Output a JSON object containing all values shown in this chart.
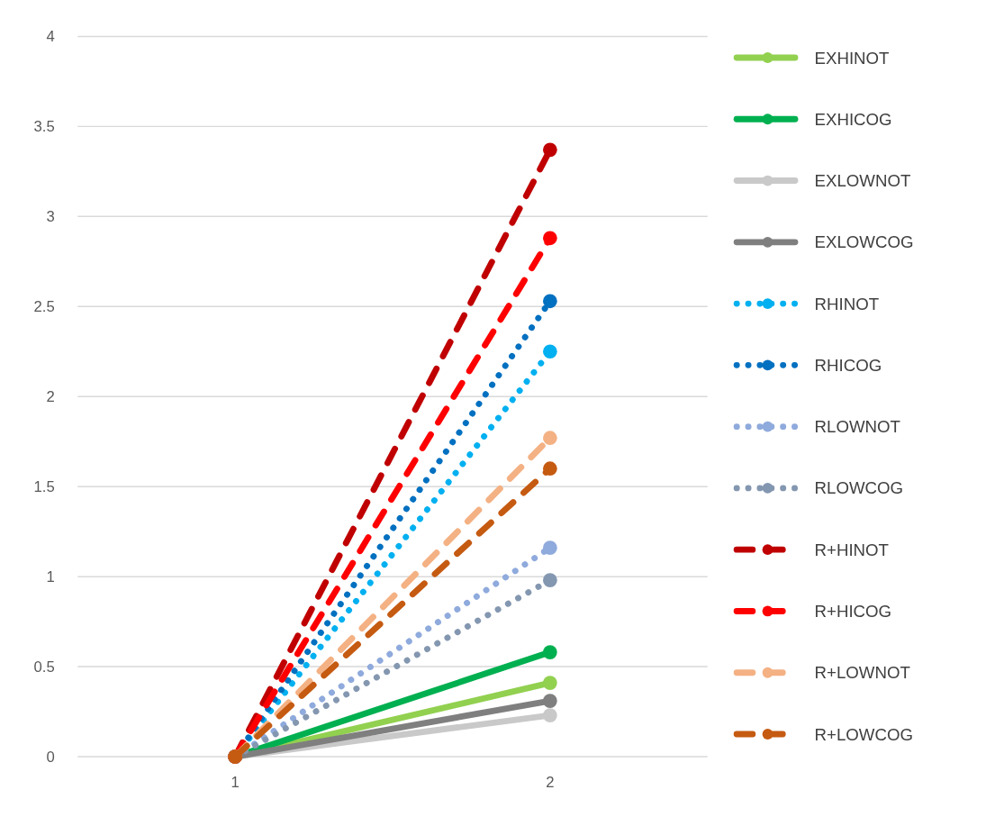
{
  "chart_data": {
    "type": "line",
    "categories": [
      "1",
      "2"
    ],
    "ylim": [
      0,
      4
    ],
    "yticks": [
      0,
      0.5,
      1,
      1.5,
      2,
      2.5,
      3,
      3.5,
      4
    ],
    "grid": "y",
    "legend": "right",
    "marker": "circle",
    "series": [
      {
        "name": "EXHINOT",
        "color": "#92d050",
        "line_style": "solid",
        "values": [
          0,
          0.41
        ]
      },
      {
        "name": "EXHICOG",
        "color": "#00b050",
        "line_style": "solid",
        "values": [
          0,
          0.58
        ]
      },
      {
        "name": "EXLOWNOT",
        "color": "#c9c9c9",
        "line_style": "solid",
        "values": [
          0,
          0.23
        ]
      },
      {
        "name": "EXLOWCOG",
        "color": "#7f7f7f",
        "line_style": "solid",
        "values": [
          0,
          0.31
        ]
      },
      {
        "name": "RHINOT",
        "color": "#00b0f0",
        "line_style": "dotted",
        "values": [
          0,
          2.25
        ]
      },
      {
        "name": "RHICOG",
        "color": "#0070c0",
        "line_style": "dotted",
        "values": [
          0,
          2.53
        ]
      },
      {
        "name": "RLOWNOT",
        "color": "#8faadc",
        "line_style": "dotted",
        "values": [
          0,
          1.16
        ]
      },
      {
        "name": "RLOWCOG",
        "color": "#8497b0",
        "line_style": "dotted",
        "values": [
          0,
          0.98
        ]
      },
      {
        "name": "R+HINOT",
        "color": "#c00000",
        "line_style": "dashed",
        "values": [
          0,
          3.37
        ]
      },
      {
        "name": "R+HICOG",
        "color": "#ff0000",
        "line_style": "dashed",
        "values": [
          0,
          2.88
        ]
      },
      {
        "name": "R+LOWNOT",
        "color": "#f4b183",
        "line_style": "dashed",
        "values": [
          0,
          1.77
        ]
      },
      {
        "name": "R+LOWCOG",
        "color": "#c55a11",
        "line_style": "dashed",
        "values": [
          0,
          1.6
        ]
      }
    ]
  }
}
